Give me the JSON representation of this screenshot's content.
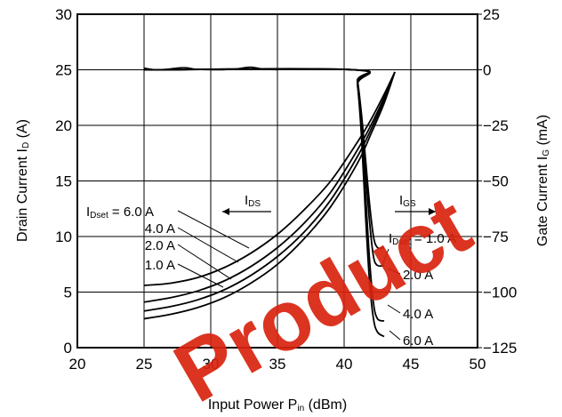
{
  "chart_data": {
    "type": "line",
    "watermark": "Product",
    "xlabel": "Input Power  P",
    "xlabel_sub": "in",
    "xlabel_unit": " (dBm)",
    "ylabel_left": "Drain Current  I",
    "ylabel_left_sub": "D",
    "ylabel_left_unit": " (A)",
    "ylabel_right": "Gate Current  I",
    "ylabel_right_sub": "G",
    "ylabel_right_unit": " (mA)",
    "xlim": [
      20,
      50
    ],
    "ylim_left": [
      0,
      30
    ],
    "ylim_right": [
      -125,
      25
    ],
    "x_ticks": [
      20,
      25,
      30,
      35,
      40,
      45,
      50
    ],
    "y_left_ticks": [
      0,
      5,
      10,
      15,
      20,
      25,
      30
    ],
    "y_right_ticks": [
      25,
      0,
      -25,
      -50,
      -75,
      -100,
      -125
    ],
    "y_right_tick_labels": [
      "25",
      "0",
      "−25",
      "−50",
      "−75",
      "−100",
      "−125"
    ],
    "grid": true,
    "drain_current_series": [
      {
        "name": "6.0 A",
        "x": [
          25,
          27,
          29,
          31,
          33,
          35,
          37,
          39,
          41,
          42,
          43,
          43.8
        ],
        "y": [
          5.6,
          5.8,
          6.3,
          7.2,
          8.5,
          10.2,
          12.4,
          15.0,
          18.5,
          20.5,
          22.8,
          24.8
        ]
      },
      {
        "name": "4.0 A",
        "x": [
          25,
          27,
          29,
          31,
          33,
          35,
          37,
          39,
          41,
          42,
          43,
          43.8
        ],
        "y": [
          4.1,
          4.5,
          5.1,
          6.0,
          7.3,
          9.0,
          11.2,
          14.0,
          17.8,
          20.0,
          22.5,
          24.8
        ]
      },
      {
        "name": "2.0 A",
        "x": [
          25,
          27,
          29,
          31,
          33,
          35,
          37,
          39,
          41,
          42,
          43,
          43.8
        ],
        "y": [
          3.3,
          3.7,
          4.3,
          5.2,
          6.5,
          8.2,
          10.4,
          13.3,
          17.2,
          19.6,
          22.3,
          24.8
        ]
      },
      {
        "name": "1.0 A",
        "x": [
          25,
          27,
          29,
          31,
          33,
          35,
          37,
          39,
          41,
          42,
          43,
          43.8
        ],
        "y": [
          2.6,
          3.0,
          3.6,
          4.5,
          5.8,
          7.5,
          9.8,
          12.7,
          16.6,
          19.2,
          22.0,
          24.8
        ]
      }
    ],
    "gate_current_series": [
      {
        "name": "1.0 A",
        "x": [
          25,
          40.7,
          41.0,
          41.3,
          41.6,
          41.9,
          42.2,
          42.5,
          43.0
        ],
        "y": [
          0,
          0,
          -5,
          -20,
          -40,
          -60,
          -75,
          -80,
          -80
        ]
      },
      {
        "name": "2.0 A",
        "x": [
          25,
          40.7,
          41.0,
          41.3,
          41.6,
          41.9,
          42.2,
          42.5,
          43.0
        ],
        "y": [
          0,
          0,
          -5,
          -22,
          -45,
          -68,
          -84,
          -88,
          -88
        ]
      },
      {
        "name": "4.0 A",
        "x": [
          25,
          40.7,
          41.0,
          41.3,
          41.6,
          41.9,
          42.2,
          42.5,
          43.0
        ],
        "y": [
          0,
          0,
          -6,
          -25,
          -55,
          -85,
          -105,
          -112,
          -113
        ]
      },
      {
        "name": "6.0 A",
        "x": [
          25,
          40.7,
          41.0,
          41.3,
          41.6,
          41.9,
          42.2,
          42.5,
          43.0
        ],
        "y": [
          0,
          0,
          -7,
          -30,
          -65,
          -95,
          -112,
          -118,
          -120
        ]
      }
    ],
    "gate_ripple_x": [
      25,
      26,
      27,
      28,
      29,
      30,
      31,
      32,
      33,
      34,
      35
    ],
    "gate_ripple_y": [
      0.8,
      0,
      0.5,
      1.0,
      0.2,
      0,
      0,
      0.5,
      1.2,
      0.3,
      0
    ],
    "ids_label": {
      "main": "I",
      "sub": "DS"
    },
    "igs_label": {
      "main": "I",
      "sub": "GS"
    },
    "dset_left": {
      "prefix_main": "I",
      "prefix_sub": "Dset",
      "equals": " = ",
      "values": [
        "6.0 A",
        "4.0 A",
        "2.0 A",
        "1.0 A"
      ]
    },
    "dset_right": {
      "prefix_main": "I",
      "prefix_sub": "Dset",
      "equals": " = ",
      "first_value": "1.0 A",
      "values": [
        "2.0 A",
        "4.0 A",
        "6.0 A"
      ]
    }
  }
}
